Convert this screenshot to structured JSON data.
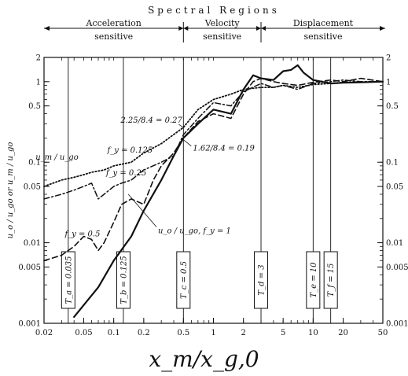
{
  "chart_data": {
    "type": "line",
    "title": "Spectral Regions",
    "regions": [
      {
        "label": "Acceleration",
        "sublabel": "sensitive",
        "x_from": 0.02,
        "x_to": 0.5
      },
      {
        "label": "Velocity",
        "sublabel": "sensitive",
        "x_from": 0.5,
        "x_to": 3
      },
      {
        "label": "Displacement",
        "sublabel": "sensitive",
        "x_from": 3,
        "x_to": 50
      }
    ],
    "xlabel": "x_m/x_g,0",
    "ylabel": "u_o / u_go or u_m / u_go",
    "xscale": "log",
    "yscale": "log",
    "xlim": [
      0.02,
      50
    ],
    "ylim": [
      0.001,
      2
    ],
    "xticks": [
      {
        "value": 0.02,
        "label": "0.02"
      },
      {
        "value": 0.05,
        "label": "0.05"
      },
      {
        "value": 0.1,
        "label": "0.1"
      },
      {
        "value": 0.2,
        "label": "0.2"
      },
      {
        "value": 0.5,
        "label": "0.5"
      },
      {
        "value": 1,
        "label": "1"
      },
      {
        "value": 2,
        "label": "2"
      },
      {
        "value": 5,
        "label": "5"
      },
      {
        "value": 10,
        "label": "10"
      },
      {
        "value": 20,
        "label": "20"
      },
      {
        "value": 50,
        "label": "50"
      }
    ],
    "yticks": [
      {
        "value": 0.001,
        "label": "0.001"
      },
      {
        "value": 0.005,
        "label": "0.005"
      },
      {
        "value": 0.01,
        "label": "0.01"
      },
      {
        "value": 0.05,
        "label": "0.05"
      },
      {
        "value": 0.1,
        "label": "0.1"
      },
      {
        "value": 0.5,
        "label": "0.5"
      },
      {
        "value": 1,
        "label": "1"
      },
      {
        "value": 2,
        "label": "2"
      }
    ],
    "period_markers": [
      {
        "x": 0.035,
        "label": "T_a = 0.035"
      },
      {
        "x": 0.125,
        "label": "T_b = 0.125"
      },
      {
        "x": 0.5,
        "label": "T_c = 0.5"
      },
      {
        "x": 3,
        "label": "T_d = 3"
      },
      {
        "x": 10,
        "label": "T_e = 10"
      },
      {
        "x": 15,
        "label": "T_f = 15"
      }
    ],
    "series": [
      {
        "name": "u_o / u_go, f_y = 1",
        "style": "solid",
        "x": [
          0.04,
          0.07,
          0.1,
          0.15,
          0.2,
          0.3,
          0.4,
          0.5,
          0.7,
          1,
          1.5,
          2,
          2.5,
          3,
          4,
          5,
          6,
          7,
          8,
          10,
          15,
          20,
          30,
          50
        ],
        "y": [
          0.0012,
          0.0028,
          0.006,
          0.012,
          0.025,
          0.06,
          0.12,
          0.2,
          0.3,
          0.45,
          0.4,
          0.8,
          1.2,
          1.1,
          1.05,
          1.35,
          1.4,
          1.6,
          1.3,
          1.05,
          0.95,
          0.97,
          0.98,
          1.0
        ]
      },
      {
        "name": "f_y = 0.5",
        "style": "dashed",
        "x": [
          0.02,
          0.03,
          0.04,
          0.05,
          0.06,
          0.07,
          0.08,
          0.1,
          0.12,
          0.15,
          0.2,
          0.25,
          0.3,
          0.4,
          0.5,
          0.7,
          1,
          1.5,
          2,
          2.5,
          3,
          4,
          5,
          7,
          10,
          15,
          20,
          30,
          50
        ],
        "y": [
          0.006,
          0.007,
          0.009,
          0.012,
          0.011,
          0.008,
          0.01,
          0.018,
          0.03,
          0.035,
          0.03,
          0.06,
          0.09,
          0.13,
          0.2,
          0.32,
          0.4,
          0.35,
          0.7,
          1.0,
          1.1,
          1.0,
          0.95,
          0.9,
          0.98,
          1.05,
          1.0,
          1.1,
          1.0
        ]
      },
      {
        "name": "f_y = 0.25",
        "style": "dash-dot",
        "x": [
          0.02,
          0.03,
          0.04,
          0.05,
          0.06,
          0.07,
          0.08,
          0.1,
          0.12,
          0.15,
          0.2,
          0.3,
          0.4,
          0.5,
          0.7,
          1,
          1.5,
          2,
          3,
          4,
          5,
          7,
          10,
          15,
          20,
          30,
          50
        ],
        "y": [
          0.035,
          0.04,
          0.045,
          0.05,
          0.055,
          0.035,
          0.04,
          0.05,
          0.055,
          0.06,
          0.08,
          0.1,
          0.12,
          0.22,
          0.35,
          0.55,
          0.5,
          0.75,
          0.95,
          0.85,
          0.9,
          0.8,
          0.95,
          1.0,
          1.05,
          1.0,
          1.0
        ]
      },
      {
        "name": "f_y = 0.125",
        "style": "dotted",
        "x": [
          0.02,
          0.03,
          0.04,
          0.05,
          0.06,
          0.08,
          0.1,
          0.15,
          0.2,
          0.3,
          0.5,
          0.7,
          1,
          1.5,
          2,
          3,
          4,
          5,
          7,
          10,
          15,
          20,
          50
        ],
        "y": [
          0.05,
          0.06,
          0.065,
          0.07,
          0.075,
          0.08,
          0.09,
          0.1,
          0.13,
          0.17,
          0.27,
          0.45,
          0.6,
          0.7,
          0.8,
          0.85,
          0.85,
          0.9,
          0.85,
          0.92,
          0.95,
          0.98,
          1.0
        ]
      }
    ],
    "annotations": [
      {
        "text": "2.25/8.4 = 0.27",
        "x": 0.5,
        "y": 0.27
      },
      {
        "text": "1.62/8.4 = 0.19",
        "x": 0.5,
        "y": 0.19
      },
      {
        "text": "u_m / u_go",
        "x": 0.055,
        "y": 0.09
      },
      {
        "text": "f_y = 0.125",
        "x": 0.16,
        "y": 0.12
      },
      {
        "text": "f_y = 0.25",
        "x": 0.09,
        "y": 0.06
      },
      {
        "text": "f_y = 0.5",
        "x": 0.05,
        "y": 0.012
      },
      {
        "text": "u_o / u_go, f_y = 1",
        "x": 0.4,
        "y": 0.018
      }
    ],
    "grid": false
  }
}
